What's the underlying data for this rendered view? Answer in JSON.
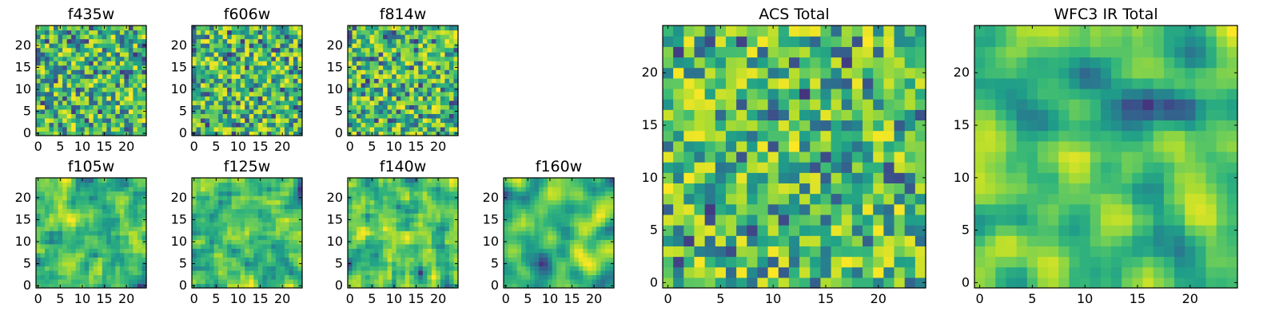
{
  "chart_data": [
    {
      "type": "heatmap",
      "title": "f435w",
      "grid_size": [
        25,
        25
      ],
      "xlim": [
        -0.5,
        24.5
      ],
      "ylim": [
        -0.5,
        24.5
      ],
      "x_ticks": [
        0,
        5,
        10,
        15,
        20
      ],
      "y_ticks": [
        0,
        5,
        10,
        15,
        20
      ],
      "colormap": "viridis",
      "pattern": "fine-grained noise, mostly teal-green with scattered dark purple and yellow pixels",
      "smoothness": 0,
      "seed": 11
    },
    {
      "type": "heatmap",
      "title": "f606w",
      "grid_size": [
        25,
        25
      ],
      "xlim": [
        -0.5,
        24.5
      ],
      "ylim": [
        -0.5,
        24.5
      ],
      "x_ticks": [
        0,
        5,
        10,
        15,
        20
      ],
      "y_ticks": [
        0,
        5,
        10,
        15,
        20
      ],
      "colormap": "viridis",
      "pattern": "fine-grained noise, mostly green-yellow with scattered dark pixels",
      "smoothness": 0,
      "seed": 23
    },
    {
      "type": "heatmap",
      "title": "f814w",
      "grid_size": [
        25,
        25
      ],
      "xlim": [
        -0.5,
        24.5
      ],
      "ylim": [
        -0.5,
        24.5
      ],
      "x_ticks": [
        0,
        5,
        10,
        15,
        20
      ],
      "y_ticks": [
        0,
        5,
        10,
        15,
        20
      ],
      "colormap": "viridis",
      "pattern": "fine-grained noise, mostly green-yellow with scattered dark pixels",
      "smoothness": 0,
      "seed": 37
    },
    {
      "type": "heatmap",
      "title": "f105w",
      "grid_size": [
        25,
        25
      ],
      "xlim": [
        -0.5,
        24.5
      ],
      "ylim": [
        -0.5,
        24.5
      ],
      "x_ticks": [
        0,
        5,
        10,
        15,
        20
      ],
      "y_ticks": [
        0,
        5,
        10,
        15,
        20
      ],
      "colormap": "viridis",
      "pattern": "smoothed noise, green with yellow blotches",
      "smoothness": 1,
      "seed": 41
    },
    {
      "type": "heatmap",
      "title": "f125w",
      "grid_size": [
        25,
        25
      ],
      "xlim": [
        -0.5,
        24.5
      ],
      "ylim": [
        -0.5,
        24.5
      ],
      "x_ticks": [
        0,
        5,
        10,
        15,
        20
      ],
      "y_ticks": [
        0,
        5,
        10,
        15,
        20
      ],
      "colormap": "viridis",
      "pattern": "smoothed noise, green-yellow with few dark spots",
      "smoothness": 1,
      "seed": 53
    },
    {
      "type": "heatmap",
      "title": "f140w",
      "grid_size": [
        25,
        25
      ],
      "xlim": [
        -0.5,
        24.5
      ],
      "ylim": [
        -0.5,
        24.5
      ],
      "x_ticks": [
        0,
        5,
        10,
        15,
        20
      ],
      "y_ticks": [
        0,
        5,
        10,
        15,
        20
      ],
      "colormap": "viridis",
      "pattern": "smoothed noise, green-yellow with dark spots",
      "smoothness": 1,
      "seed": 67
    },
    {
      "type": "heatmap",
      "title": "f160w",
      "grid_size": [
        25,
        25
      ],
      "xlim": [
        -0.5,
        24.5
      ],
      "ylim": [
        -0.5,
        24.5
      ],
      "x_ticks": [
        0,
        5,
        10,
        15,
        20
      ],
      "y_ticks": [
        0,
        5,
        10,
        15,
        20
      ],
      "colormap": "viridis",
      "pattern": "smoothed noise, green-yellow with teal patches",
      "smoothness": 2,
      "seed": 79
    },
    {
      "type": "heatmap",
      "title": "ACS Total",
      "grid_size": [
        25,
        25
      ],
      "xlim": [
        -0.5,
        24.5
      ],
      "ylim": [
        -0.5,
        24.5
      ],
      "x_ticks": [
        0,
        5,
        10,
        15,
        20
      ],
      "y_ticks": [
        0,
        5,
        10,
        15,
        20
      ],
      "colormap": "viridis",
      "pattern": "noise, mostly light green with scattered dark purple pixels",
      "smoothness": 0,
      "seed": 83
    },
    {
      "type": "heatmap",
      "title": "WFC3 IR Total",
      "grid_size": [
        25,
        25
      ],
      "xlim": [
        -0.5,
        24.5
      ],
      "ylim": [
        -0.5,
        24.5
      ],
      "x_ticks": [
        0,
        5,
        10,
        15,
        20
      ],
      "y_ticks": [
        0,
        5,
        10,
        15,
        20
      ],
      "colormap": "viridis",
      "pattern": "smoothed noise, bright yellow-green center, darker teal lower-left corner",
      "smoothness": 2,
      "seed": 97
    }
  ]
}
